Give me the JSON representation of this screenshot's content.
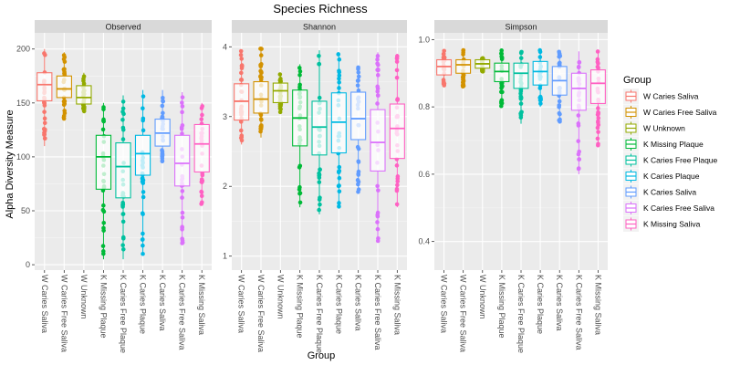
{
  "chart_data": {
    "type": "box",
    "title": "Species Richness",
    "xlabel": "Group",
    "ylabel": "Alpha Diversity Measure",
    "legend": {
      "title": "Group",
      "placement": "right",
      "entries": [
        {
          "name": "W Caries Saliva",
          "color": "#F8766D"
        },
        {
          "name": "W Caries Free Saliva",
          "color": "#D39200"
        },
        {
          "name": "W Unknown",
          "color": "#93AA00"
        },
        {
          "name": "K Missing Plaque",
          "color": "#00BA38"
        },
        {
          "name": "K Caries Free Plaque",
          "color": "#00C19F"
        },
        {
          "name": "K Caries Plaque",
          "color": "#00B9E3"
        },
        {
          "name": "K Caries Saliva",
          "color": "#619CFF"
        },
        {
          "name": "K Caries Free Saliva",
          "color": "#DB72FB"
        },
        {
          "name": "K Missing Saliva",
          "color": "#FF61C3"
        }
      ]
    },
    "categories": [
      "W Caries Saliva",
      "W Caries Free Saliva",
      "W Unknown",
      "K Missing Plaque",
      "K Caries Free Plaque",
      "K Caries Plaque",
      "K Caries Saliva",
      "K Caries Free Saliva",
      "K Missing Saliva"
    ],
    "panels": [
      {
        "name": "Observed",
        "ylim": [
          -5,
          215
        ],
        "yticks": [
          0,
          50,
          100,
          150,
          200
        ],
        "ytick_labels": [
          "0",
          "50",
          "100",
          "150",
          "200"
        ],
        "boxes": [
          {
            "min": 110,
            "q1": 152,
            "median": 167,
            "q3": 178,
            "max": 200
          },
          {
            "min": 135,
            "q1": 155,
            "median": 163,
            "q3": 175,
            "max": 197
          },
          {
            "min": 142,
            "q1": 149,
            "median": 155,
            "q3": 166,
            "max": 178
          },
          {
            "min": 5,
            "q1": 70,
            "median": 100,
            "q3": 120,
            "max": 150
          },
          {
            "min": 5,
            "q1": 62,
            "median": 91,
            "q3": 113,
            "max": 157
          },
          {
            "min": 10,
            "q1": 83,
            "median": 103,
            "q3": 120,
            "max": 162
          },
          {
            "min": 95,
            "q1": 110,
            "median": 122,
            "q3": 135,
            "max": 162
          },
          {
            "min": 20,
            "q1": 73,
            "median": 94,
            "q3": 120,
            "max": 160
          },
          {
            "min": 55,
            "q1": 86,
            "median": 112,
            "q3": 130,
            "max": 150
          }
        ]
      },
      {
        "name": "Shannon",
        "ylim": [
          0.8,
          4.2
        ],
        "yticks": [
          1,
          2,
          3,
          4
        ],
        "ytick_labels": [
          "1",
          "2",
          "3",
          "4"
        ],
        "boxes": [
          {
            "min": 2.6,
            "q1": 2.95,
            "median": 3.22,
            "q3": 3.47,
            "max": 3.95
          },
          {
            "min": 2.7,
            "q1": 3.05,
            "median": 3.25,
            "q3": 3.5,
            "max": 4.0
          },
          {
            "min": 3.05,
            "q1": 3.2,
            "median": 3.37,
            "q3": 3.48,
            "max": 3.62
          },
          {
            "min": 1.7,
            "q1": 2.58,
            "median": 2.98,
            "q3": 3.38,
            "max": 3.75
          },
          {
            "min": 1.6,
            "q1": 2.45,
            "median": 2.85,
            "q3": 3.22,
            "max": 3.95
          },
          {
            "min": 1.7,
            "q1": 2.48,
            "median": 2.92,
            "q3": 3.34,
            "max": 3.92
          },
          {
            "min": 1.9,
            "q1": 2.67,
            "median": 2.97,
            "q3": 3.35,
            "max": 3.72
          },
          {
            "min": 1.2,
            "q1": 2.22,
            "median": 2.63,
            "q3": 3.1,
            "max": 3.92
          },
          {
            "min": 1.7,
            "q1": 2.4,
            "median": 2.83,
            "q3": 3.18,
            "max": 3.9
          }
        ]
      },
      {
        "name": "Simpson",
        "ylim": [
          0.315,
          1.02
        ],
        "yticks": [
          0.4,
          0.6,
          0.8,
          1.0
        ],
        "ytick_labels": [
          "0.4",
          "0.6",
          "0.8",
          "1.0"
        ],
        "boxes": [
          {
            "min": 0.86,
            "q1": 0.895,
            "median": 0.92,
            "q3": 0.94,
            "max": 0.97
          },
          {
            "min": 0.86,
            "q1": 0.9,
            "median": 0.925,
            "q3": 0.94,
            "max": 0.97
          },
          {
            "min": 0.905,
            "q1": 0.915,
            "median": 0.928,
            "q3": 0.94,
            "max": 0.945
          },
          {
            "min": 0.8,
            "q1": 0.875,
            "median": 0.905,
            "q3": 0.93,
            "max": 0.97
          },
          {
            "min": 0.75,
            "q1": 0.855,
            "median": 0.9,
            "q3": 0.93,
            "max": 0.965
          },
          {
            "min": 0.8,
            "q1": 0.865,
            "median": 0.905,
            "q3": 0.935,
            "max": 0.97
          },
          {
            "min": 0.75,
            "q1": 0.835,
            "median": 0.878,
            "q3": 0.92,
            "max": 0.965
          },
          {
            "min": 0.6,
            "q1": 0.79,
            "median": 0.855,
            "q3": 0.9,
            "max": 0.965
          },
          {
            "min": 0.68,
            "q1": 0.81,
            "median": 0.87,
            "q3": 0.91,
            "max": 0.965
          }
        ]
      }
    ]
  }
}
